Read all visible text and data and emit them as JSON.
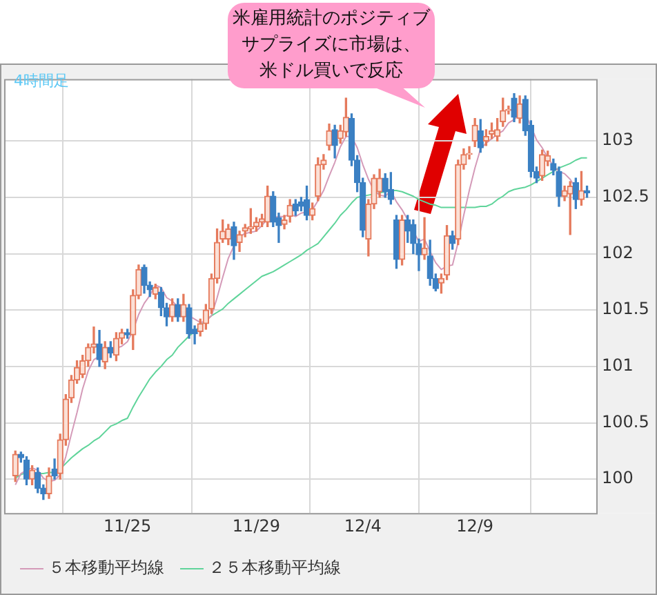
{
  "chart_data": {
    "type": "candlestick",
    "annotations": [
      "4時間足",
      "米雇用統計のポジティブ",
      "サプライズに市場は、",
      "米ドル買いで反応"
    ],
    "categories": [
      null,
      null,
      null,
      null,
      null,
      null,
      null,
      null,
      null,
      null,
      null,
      null,
      null,
      null,
      null,
      null,
      null,
      null,
      null,
      null,
      "11/25",
      null,
      null,
      null,
      null,
      null,
      null,
      null,
      null,
      null,
      null,
      null,
      null,
      null,
      null,
      null,
      null,
      null,
      null,
      null,
      null,
      null,
      null,
      "11/29",
      null,
      null,
      null,
      null,
      null,
      null,
      null,
      null,
      null,
      null,
      null,
      null,
      null,
      null,
      null,
      null,
      null,
      null,
      "12/4",
      null,
      null,
      null,
      null,
      null,
      null,
      null,
      null,
      null,
      null,
      null,
      null,
      null,
      null,
      null,
      null,
      null,
      null,
      null,
      "12/9",
      null,
      null,
      null,
      null,
      null,
      null,
      null,
      null,
      null,
      null,
      null,
      null,
      null,
      null,
      null,
      null,
      null,
      null,
      null,
      null
    ],
    "ohlc": [
      [
        100.03,
        100.25,
        99.98,
        100.22
      ],
      [
        100.22,
        100.24,
        100.15,
        100.19
      ],
      [
        100.17,
        100.2,
        99.95,
        100.0
      ],
      [
        100.0,
        100.12,
        99.95,
        100.08
      ],
      [
        100.06,
        100.1,
        99.88,
        99.92
      ],
      [
        99.92,
        99.95,
        99.82,
        99.87
      ],
      [
        99.87,
        100.1,
        99.83,
        100.03
      ],
      [
        100.09,
        100.18,
        100.0,
        100.03
      ],
      [
        100.05,
        100.4,
        100.0,
        100.35
      ],
      [
        100.35,
        100.75,
        100.3,
        100.71
      ],
      [
        100.72,
        100.92,
        100.68,
        100.88
      ],
      [
        100.88,
        101.05,
        100.85,
        100.99
      ],
      [
        100.93,
        101.1,
        100.9,
        101.05
      ],
      [
        101.05,
        101.2,
        101.0,
        101.17
      ],
      [
        101.17,
        101.35,
        101.12,
        101.2
      ],
      [
        101.2,
        101.32,
        101.0,
        101.06
      ],
      [
        101.04,
        101.22,
        100.98,
        101.17
      ],
      [
        101.17,
        101.22,
        101.08,
        101.12
      ],
      [
        101.1,
        101.3,
        101.05,
        101.25
      ],
      [
        101.25,
        101.33,
        101.2,
        101.3
      ],
      [
        101.3,
        101.33,
        101.25,
        101.28
      ],
      [
        101.28,
        101.68,
        101.15,
        101.63
      ],
      [
        101.63,
        101.9,
        101.6,
        101.86
      ],
      [
        101.88,
        101.9,
        101.65,
        101.72
      ],
      [
        101.72,
        101.75,
        101.62,
        101.68
      ],
      [
        101.64,
        101.73,
        101.6,
        101.7
      ],
      [
        101.66,
        101.7,
        101.45,
        101.52
      ],
      [
        101.52,
        101.56,
        101.36,
        101.44
      ],
      [
        101.44,
        101.6,
        101.4,
        101.55
      ],
      [
        101.55,
        101.6,
        101.4,
        101.44
      ],
      [
        101.44,
        101.64,
        101.4,
        101.55
      ],
      [
        101.52,
        101.55,
        101.25,
        101.29
      ],
      [
        101.33,
        101.36,
        101.2,
        101.29
      ],
      [
        101.31,
        101.42,
        101.27,
        101.38
      ],
      [
        101.38,
        101.55,
        101.33,
        101.5
      ],
      [
        101.51,
        101.82,
        101.47,
        101.78
      ],
      [
        101.78,
        102.22,
        101.74,
        102.1
      ],
      [
        102.13,
        102.3,
        102.1,
        102.2
      ],
      [
        102.13,
        102.26,
        102.08,
        102.22
      ],
      [
        102.24,
        102.28,
        101.95,
        102.07
      ],
      [
        102.1,
        102.2,
        102.02,
        102.17
      ],
      [
        102.2,
        102.26,
        102.15,
        102.23
      ],
      [
        102.22,
        102.4,
        102.18,
        102.24
      ],
      [
        102.24,
        102.32,
        102.2,
        102.28
      ],
      [
        102.28,
        102.35,
        102.24,
        102.31
      ],
      [
        102.28,
        102.6,
        102.24,
        102.51
      ],
      [
        102.51,
        102.55,
        102.24,
        102.28
      ],
      [
        102.32,
        102.36,
        102.1,
        102.25
      ],
      [
        102.26,
        102.34,
        102.22,
        102.3
      ],
      [
        102.33,
        102.48,
        102.28,
        102.43
      ],
      [
        102.44,
        102.48,
        102.34,
        102.38
      ],
      [
        102.46,
        102.5,
        102.38,
        102.42
      ],
      [
        102.48,
        102.6,
        102.3,
        102.34
      ],
      [
        102.34,
        102.45,
        102.3,
        102.4
      ],
      [
        102.51,
        102.85,
        102.47,
        102.79
      ],
      [
        102.79,
        102.88,
        102.75,
        102.83
      ],
      [
        102.96,
        103.15,
        102.92,
        103.09
      ],
      [
        103.1,
        103.14,
        102.85,
        102.96
      ],
      [
        103.02,
        103.14,
        102.98,
        103.09
      ],
      [
        103.08,
        103.38,
        103.04,
        103.21
      ],
      [
        103.2,
        103.24,
        102.78,
        102.83
      ],
      [
        102.83,
        102.87,
        102.55,
        102.63
      ],
      [
        102.63,
        102.67,
        102.15,
        102.21
      ],
      [
        102.13,
        102.48,
        101.98,
        102.44
      ],
      [
        102.44,
        102.7,
        102.4,
        102.67
      ],
      [
        102.55,
        102.75,
        102.5,
        102.67
      ],
      [
        102.67,
        102.71,
        102.5,
        102.55
      ],
      [
        102.57,
        102.72,
        102.44,
        102.48
      ],
      [
        102.3,
        102.34,
        101.87,
        101.95
      ],
      [
        101.95,
        102.34,
        101.9,
        102.3
      ],
      [
        102.3,
        102.34,
        102.1,
        102.2
      ],
      [
        102.26,
        102.3,
        102.0,
        102.09
      ],
      [
        102.09,
        102.13,
        101.85,
        101.99
      ],
      [
        101.99,
        102.32,
        101.95,
        102.05
      ],
      [
        101.98,
        102.12,
        101.72,
        101.78
      ],
      [
        101.78,
        101.82,
        101.67,
        101.69
      ],
      [
        101.74,
        101.82,
        101.65,
        101.78
      ],
      [
        101.81,
        102.25,
        101.77,
        102.16
      ],
      [
        102.16,
        102.2,
        102.04,
        102.09
      ],
      [
        102.13,
        102.83,
        102.08,
        102.79
      ],
      [
        102.79,
        102.93,
        102.75,
        102.88
      ],
      [
        102.88,
        102.95,
        102.84,
        102.89
      ],
      [
        103.0,
        103.2,
        102.95,
        103.14
      ],
      [
        103.09,
        103.19,
        102.9,
        102.94
      ],
      [
        103.0,
        103.1,
        102.96,
        103.04
      ],
      [
        103.06,
        103.16,
        103.02,
        103.09
      ],
      [
        103.04,
        103.2,
        103.0,
        103.1
      ],
      [
        103.17,
        103.38,
        103.13,
        103.27
      ],
      [
        103.27,
        103.31,
        103.24,
        103.28
      ],
      [
        103.38,
        103.42,
        103.17,
        103.21
      ],
      [
        103.2,
        103.4,
        103.16,
        103.33
      ],
      [
        103.37,
        103.4,
        103.05,
        103.09
      ],
      [
        103.14,
        103.18,
        102.68,
        102.73
      ],
      [
        102.73,
        102.77,
        102.63,
        102.67
      ],
      [
        102.69,
        102.92,
        102.65,
        102.88
      ],
      [
        102.82,
        102.91,
        102.78,
        102.87
      ],
      [
        102.8,
        102.84,
        102.7,
        102.74
      ],
      [
        102.73,
        102.77,
        102.42,
        102.51
      ],
      [
        102.51,
        102.6,
        102.47,
        102.56
      ],
      [
        102.53,
        102.64,
        102.17,
        102.6
      ],
      [
        102.63,
        102.67,
        102.4,
        102.48
      ],
      [
        102.48,
        102.73,
        102.43,
        102.56
      ],
      [
        102.56,
        102.6,
        102.5,
        102.54
      ]
    ],
    "series": [
      {
        "name": "５本移動平均線",
        "type": "line",
        "color": "#d49ab8",
        "values": [
          99.95,
          100.05,
          100.08,
          100.1,
          100.08,
          100.01,
          99.98,
          99.99,
          100.04,
          100.2,
          100.4,
          100.59,
          100.8,
          100.96,
          101.06,
          101.09,
          101.13,
          101.14,
          101.16,
          101.18,
          101.22,
          101.32,
          101.46,
          101.56,
          101.63,
          101.72,
          101.7,
          101.61,
          101.58,
          101.53,
          101.5,
          101.45,
          101.42,
          101.39,
          101.4,
          101.45,
          101.61,
          101.79,
          101.96,
          102.07,
          102.15,
          102.18,
          102.19,
          102.2,
          102.25,
          102.31,
          102.32,
          102.33,
          102.33,
          102.35,
          102.33,
          102.36,
          102.37,
          102.39,
          102.47,
          102.56,
          102.69,
          102.81,
          102.95,
          103.04,
          103.04,
          102.94,
          102.79,
          102.66,
          102.56,
          102.52,
          102.51,
          102.56,
          102.46,
          102.39,
          102.3,
          102.2,
          102.11,
          102.13,
          102.02,
          101.92,
          101.86,
          101.89,
          101.9,
          102.1,
          102.34,
          102.56,
          102.76,
          102.93,
          102.98,
          103.02,
          103.06,
          103.09,
          103.16,
          103.19,
          103.24,
          103.24,
          103.13,
          103.01,
          102.94,
          102.85,
          102.78,
          102.73,
          102.71,
          102.66,
          102.58,
          102.54,
          102.55
        ]
      },
      {
        "name": "２５本移動平均線",
        "type": "line",
        "color": "#5fd49a",
        "values": [
          100.01,
          100.04,
          100.06,
          100.06,
          100.05,
          100.05,
          100.06,
          100.06,
          100.09,
          100.14,
          100.19,
          100.23,
          100.27,
          100.3,
          100.34,
          100.37,
          100.42,
          100.47,
          100.49,
          100.52,
          100.54,
          100.64,
          100.73,
          100.81,
          100.89,
          100.95,
          101.0,
          101.06,
          101.1,
          101.17,
          101.22,
          101.27,
          101.31,
          101.36,
          101.41,
          101.45,
          101.48,
          101.51,
          101.56,
          101.6,
          101.64,
          101.68,
          101.72,
          101.76,
          101.8,
          101.82,
          101.84,
          101.87,
          101.9,
          101.93,
          101.96,
          101.99,
          102.03,
          102.06,
          102.09,
          102.15,
          102.21,
          102.27,
          102.34,
          102.39,
          102.45,
          102.5,
          102.51,
          102.52,
          102.53,
          102.54,
          102.55,
          102.56,
          102.56,
          102.55,
          102.53,
          102.51,
          102.48,
          102.46,
          102.44,
          102.43,
          102.41,
          102.41,
          102.41,
          102.41,
          102.41,
          102.41,
          102.41,
          102.42,
          102.42,
          102.44,
          102.48,
          102.51,
          102.55,
          102.57,
          102.58,
          102.59,
          102.61,
          102.64,
          102.67,
          102.7,
          102.73,
          102.76,
          102.78,
          102.8,
          102.83,
          102.85,
          102.85
        ]
      }
    ],
    "ylim": [
      99.7,
      103.55
    ],
    "yticks": [
      100,
      100.5,
      101,
      101.5,
      102,
      102.5,
      103
    ],
    "grid": true,
    "legend": "bottom"
  }
}
